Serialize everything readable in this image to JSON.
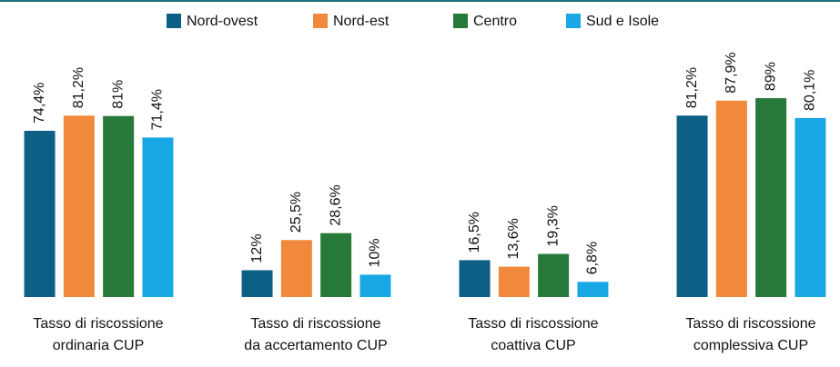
{
  "chart_data": {
    "type": "bar",
    "categories": [
      "Tasso di riscossione\nordinaria CUP",
      "Tasso di riscossione\nda accertamento CUP",
      "Tasso di riscossione\ncoattiva CUP",
      "Tasso di riscossione\ncomplessiva CUP"
    ],
    "series": [
      {
        "name": "Nord-ovest",
        "color": "#0e5f86",
        "values": [
          74.4,
          12,
          16.5,
          81.2
        ],
        "value_labels": [
          "74,4%",
          "12%",
          "16,5%",
          "81,2%"
        ]
      },
      {
        "name": "Nord-est",
        "color": "#f0893b",
        "values": [
          81.2,
          25.5,
          13.6,
          87.9
        ],
        "value_labels": [
          "81,2%",
          "25,5%",
          "13,6%",
          "87,9%"
        ]
      },
      {
        "name": "Centro",
        "color": "#27793a",
        "values": [
          81,
          28.6,
          19.3,
          89
        ],
        "value_labels": [
          "81%",
          "28,6%",
          "19,3%",
          "89%"
        ]
      },
      {
        "name": "Sud e Isole",
        "color": "#18a8e6",
        "values": [
          71.4,
          10,
          6.8,
          80.1
        ],
        "value_labels": [
          "71,4%",
          "10%",
          "6,8%",
          "80,1%"
        ]
      }
    ]
  }
}
